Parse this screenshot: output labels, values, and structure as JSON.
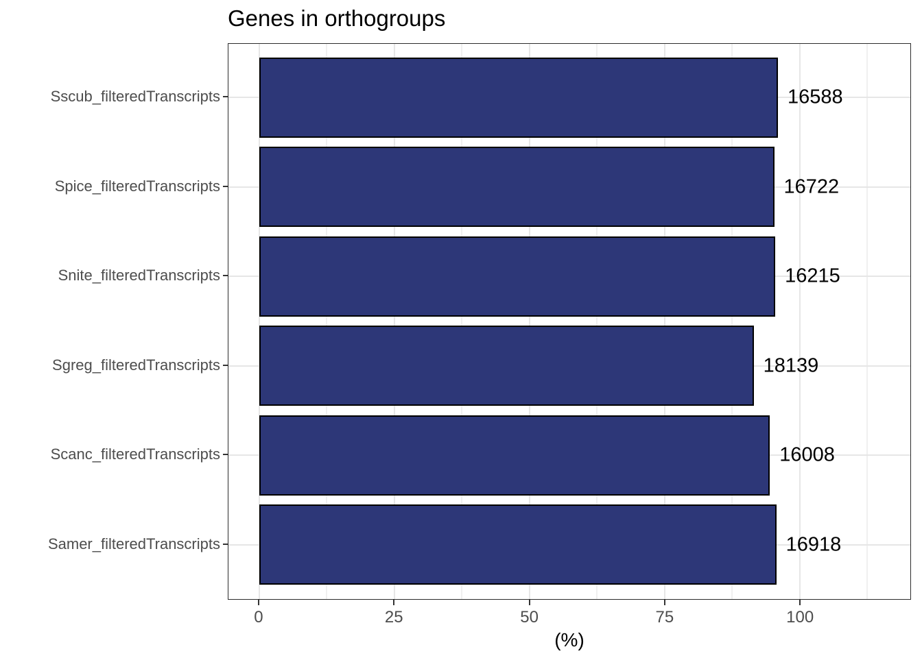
{
  "chart_data": {
    "type": "bar",
    "orientation": "horizontal",
    "title": "Genes in orthogroups",
    "xlabel": "(%)",
    "ylabel": "",
    "categories": [
      "Sscub_filteredTranscripts",
      "Spice_filteredTranscripts",
      "Snite_filteredTranscripts",
      "Sgreg_filteredTranscripts",
      "Scanc_filteredTranscripts",
      "Samer_filteredTranscripts"
    ],
    "values_pct": [
      96.0,
      95.3,
      95.5,
      91.5,
      94.5,
      95.7
    ],
    "bar_labels": [
      "16588",
      "16722",
      "16215",
      "18139",
      "16008",
      "16918"
    ],
    "x_major_ticks": [
      0,
      25,
      50,
      75,
      100
    ],
    "x_minor_ticks": [
      12.5,
      37.5,
      62.5,
      87.5,
      112.5
    ],
    "xlim": [
      -5.7,
      120.5
    ],
    "legend": "none",
    "grid": "vertical major+minor gridlines, horizontal major gridlines at category centers",
    "colors": {
      "bar_fill": "#2D3778",
      "bar_border": "#000000",
      "grid_major": "#E6E6E6",
      "grid_minor": "#F0F0F0",
      "panel_border": "#2B2B2B",
      "axis_text": "#4D4D4D",
      "tick_mark": "#333333",
      "title_text": "#000000",
      "value_label_text": "#000000",
      "background": "#FFFFFF"
    }
  }
}
